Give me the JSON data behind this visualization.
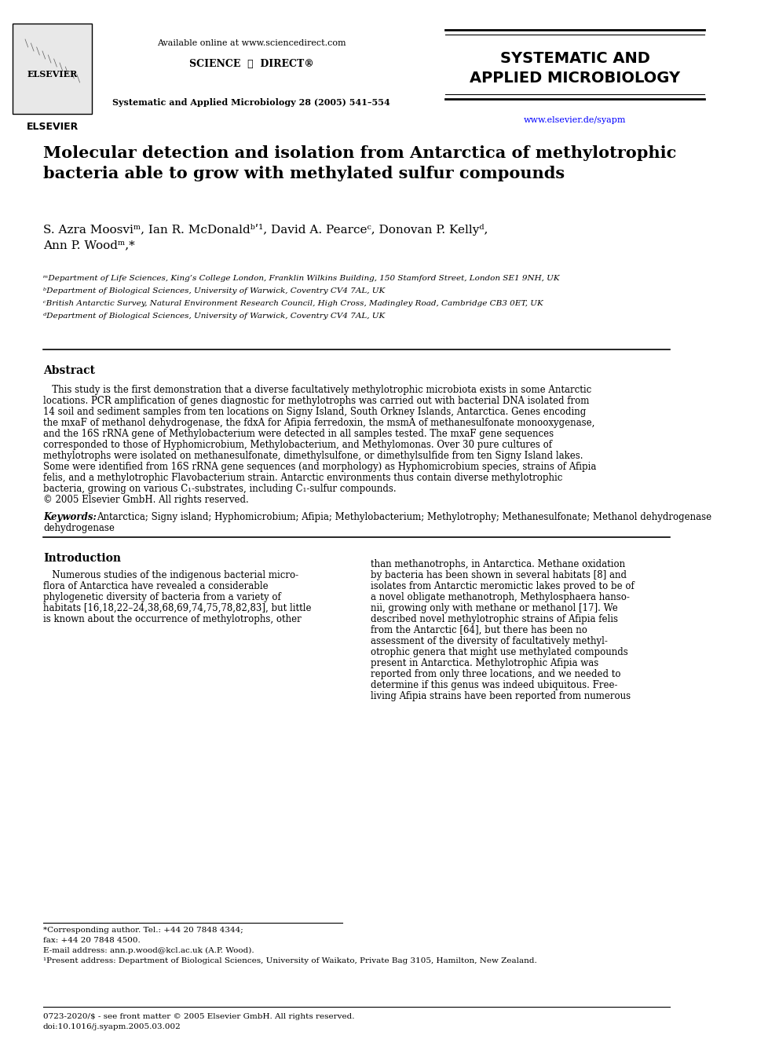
{
  "bg_color": "#ffffff",
  "header": {
    "available_online": "Available online at www.sciencedirect.com",
    "science_direct": "SCIENCE ⓓ DIRECT®",
    "journal_ref": "Systematic and Applied Microbiology 28 (2005) 541–554",
    "journal_name_line1": "SYSTEMATIC AND",
    "journal_name_line2": "APPLIED MICROBIOLOGY",
    "website": "www.elsevier.de/syapm",
    "elsevier_label": "ELSEVIER"
  },
  "title": "Molecular detection and isolation from Antarctica of methylotrophic\nbacteria able to grow with methylated sulfur compounds",
  "authors": "S. Azra Moosviᵐ, Ian R. McDonaldᵇʹ¹, David A. Pearceᶜ, Donovan P. Kellyᵈ,\nAnn P. Woodᵐ,*",
  "affiliations": [
    "ᵐDepartment of Life Sciences, King’s College London, Franklin Wilkins Building, 150 Stamford Street, London SE1 9NH, UK",
    "ᵇDepartment of Biological Sciences, University of Warwick, Coventry CV4 7AL, UK",
    "ᶜBritish Antarctic Survey, Natural Environment Research Council, High Cross, Madingley Road, Cambridge CB3 0ET, UK",
    "ᵈDepartment of Biological Sciences, University of Warwick, Coventry CV4 7AL, UK"
  ],
  "abstract_title": "Abstract",
  "abstract_text": "This study is the first demonstration that a diverse facultatively methylotrophic microbiota exists in some Antarctic locations. PCR amplification of genes diagnostic for methylotrophs was carried out with bacterial DNA isolated from 14 soil and sediment samples from ten locations on Signy Island, South Orkney Islands, Antarctica. Genes encoding the mxaF of methanol dehydrogenase, the fdxA for Afipia ferredoxin, the msmA of methanesulfonate monooxygenase, and the 16S rRNA gene of Methylobacterium were detected in all samples tested. The mxaF gene sequences corresponded to those of Hyphomicrobium, Methylobacterium, and Methylomonas. Over 30 pure cultures of methylotrophs were isolated on methanesulfonate, dimethylsulfone, or dimethylsulfide from ten Signy Island lakes. Some were identified from 16S rRNA gene sequences (and morphology) as Hyphomicrobium species, strains of Afipia felis, and a methylotrophic Flavobacterium strain. Antarctic environments thus contain diverse methylotrophic bacteria, growing on various C₁-substrates, including C₁-sulfur compounds.\n© 2005 Elsevier GmbH. All rights reserved.",
  "keywords_label": "Keywords:",
  "keywords_text": "Antarctica; Signy island; Hyphomicrobium; Afipia; Methylobacterium; Methylotrophy; Methanesulfonate; Methanol dehydrogenase",
  "intro_title": "Introduction",
  "intro_col1": "Numerous studies of the indigenous bacterial micro-flora of Antarctica have revealed a considerable phylogenetic diversity of bacteria from a variety of habitats [16,18,22–24,38,68,69,74,75,78,82,83], but little is known about the occurrence of methylotrophs, other",
  "intro_col2": "than methanotrophs, in Antarctica. Methane oxidation by bacteria has been shown in several habitats [8] and isolates from Antarctic meromictic lakes proved to be of a novel obligate methanotroph, Methylosphaera hansonii, growing only with methane or methanol [17]. We described novel methylotrophic strains of Afipia felis from the Antarctic [64], but there has been no assessment of the diversity of facultatively methylotrophic genera that might use methylated compounds present in Antarctica. Methylotrophic Afipia was reported from only three locations, and we needed to determine if this genus was indeed ubiquitous. Free-living Afipia strains have been reported from numerous",
  "footnotes": [
    "*Corresponding author. Tel.: +44 20 7848 4344;",
    "fax: +44 20 7848 4500.",
    "E-mail address: ann.p.wood@kcl.ac.uk (A.P. Wood).",
    "¹Present address: Department of Biological Sciences, University of Waikato, Private Bag 3105, Hamilton, New Zealand."
  ],
  "bottom_text": "0723-2020/$ - see front matter © 2005 Elsevier GmbH. All rights reserved.\ndoi:10.1016/j.syapm.2005.03.002"
}
